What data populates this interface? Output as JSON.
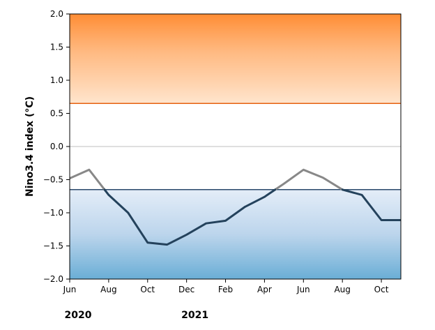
{
  "chart_data": {
    "type": "line",
    "ylabel": "Nino3.4 index (°C)",
    "ylim": [
      -2.0,
      2.0
    ],
    "y_ticks": [
      "2.0",
      "1.5",
      "1.0",
      "0.5",
      "0.0",
      "−0.5",
      "−1.0",
      "−1.5",
      "−2.0"
    ],
    "y_tick_values": [
      2.0,
      1.5,
      1.0,
      0.5,
      0.0,
      -0.5,
      -1.0,
      -1.5,
      -2.0
    ],
    "x_ticks": [
      "Jun",
      "Aug",
      "Oct",
      "Dec",
      "Feb",
      "Apr",
      "Jun",
      "Aug",
      "Oct"
    ],
    "x_tick_months": [
      0,
      2,
      4,
      6,
      8,
      10,
      12,
      14,
      16
    ],
    "x_range_months": [
      0,
      17
    ],
    "year_labels": [
      {
        "text": "2020",
        "month": 0
      },
      {
        "text": "2021",
        "month": 6
      }
    ],
    "x": [
      "2020-06",
      "2020-07",
      "2020-08",
      "2020-09",
      "2020-10",
      "2020-11",
      "2020-12",
      "2021-01",
      "2021-02",
      "2021-03",
      "2021-04",
      "2021-05",
      "2021-06",
      "2021-07",
      "2021-08",
      "2021-09",
      "2021-10",
      "2021-11"
    ],
    "values": [
      -0.48,
      -0.35,
      -0.73,
      -1.0,
      -1.45,
      -1.48,
      -1.33,
      -1.16,
      -1.12,
      -0.91,
      -0.76,
      -0.56,
      -0.35,
      -0.47,
      -0.65,
      -0.73,
      -1.11,
      -1.11
    ],
    "thresholds": {
      "el_nino": 0.65,
      "la_nina": -0.65
    },
    "zero_line": 0.0,
    "colors": {
      "warm_fill": "#ff8c33",
      "cool_fill": "#6baed6",
      "warm_line": "#e6600f",
      "cool_line": "#2b4a6b",
      "neutral_series": "#888888",
      "cold_series": "#24425c",
      "zero_line": "#cccccc"
    }
  }
}
